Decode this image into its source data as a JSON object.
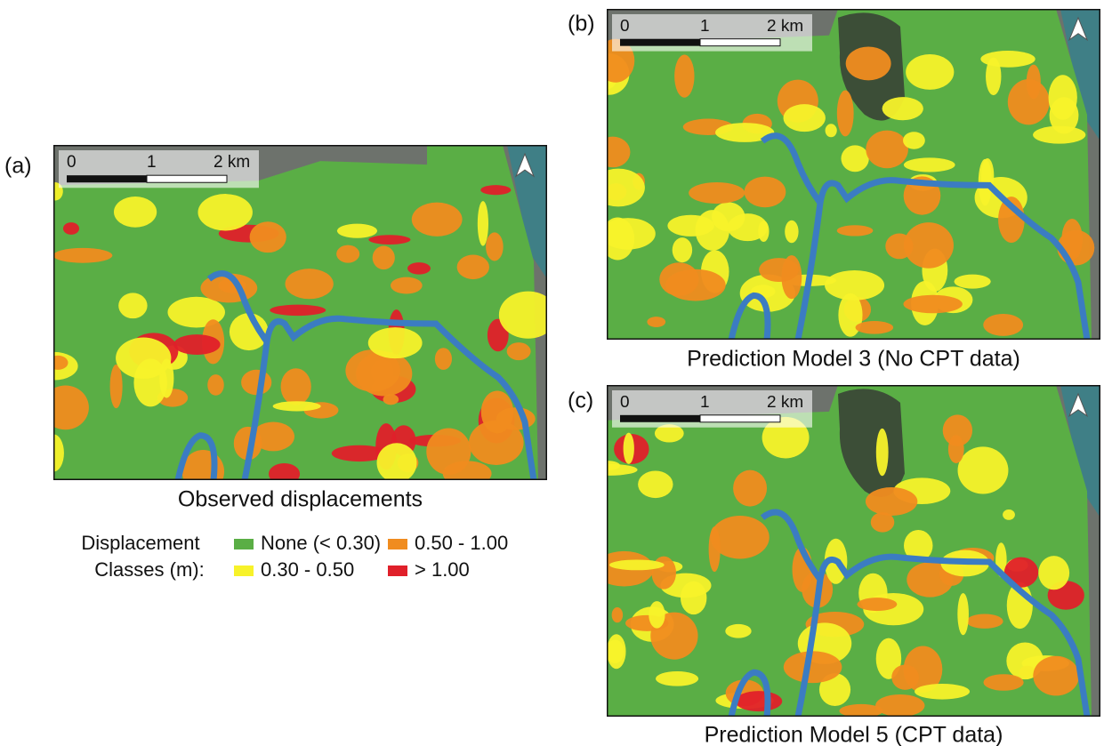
{
  "panels": [
    {
      "label": "(a)",
      "caption": "Observed displacements"
    },
    {
      "label": "(b)",
      "caption": "Prediction Model 3 (No CPT data)"
    },
    {
      "label": "(c)",
      "caption": "Prediction Model 5 (CPT data)"
    }
  ],
  "scale_bar": {
    "ticks": [
      "0",
      "1",
      "2 km"
    ]
  },
  "legend": {
    "title": [
      "Displacement",
      "Classes (m):"
    ],
    "classes": [
      {
        "label": "None (< 0.30)",
        "color": "#5aae45"
      },
      {
        "label": "0.30 - 0.50",
        "color": "#f7f22a"
      },
      {
        "label": "0.50 - 1.00",
        "color": "#f08c1f"
      },
      {
        "label": "> 1.00",
        "color": "#e0202a"
      }
    ]
  }
}
